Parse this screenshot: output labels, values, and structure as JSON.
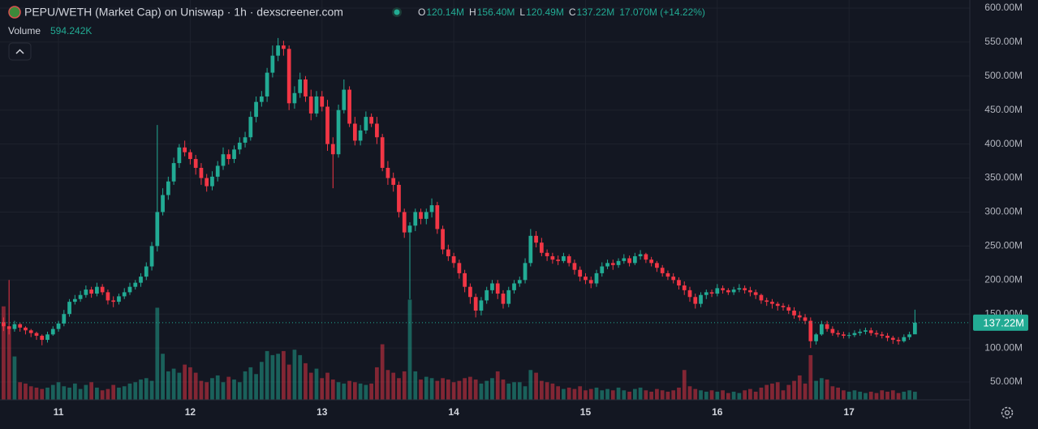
{
  "chart_data": {
    "type": "candlestick",
    "title": "PEPU/WETH (Market Cap) on Uniswap · 1h · dexscreener.com",
    "legend": [
      {
        "key": "O",
        "value": "120.14M"
      },
      {
        "key": "H",
        "value": "156.40M"
      },
      {
        "key": "L",
        "value": "120.49M"
      },
      {
        "key": "C",
        "value": "137.22M"
      }
    ],
    "change": "17.070M (+14.22%)",
    "volume_name": "Volume",
    "volume_readout": "594.242K",
    "up_color": "#22ab94",
    "down_color": "#f23645",
    "grid": true,
    "ylim": [
      23.8,
      611.9
    ],
    "yticks": [
      {
        "value": 50,
        "label": "50.00M"
      },
      {
        "value": 100,
        "label": "100.00M"
      },
      {
        "value": 150,
        "label": "150.00M"
      },
      {
        "value": 200,
        "label": "200.00M"
      },
      {
        "value": 250,
        "label": "250.00M"
      },
      {
        "value": 300,
        "label": "300.00M"
      },
      {
        "value": 350,
        "label": "350.00M"
      },
      {
        "value": 400,
        "label": "400.00M"
      },
      {
        "value": 450,
        "label": "450.00M"
      },
      {
        "value": 500,
        "label": "500.00M"
      },
      {
        "value": 550,
        "label": "550.00M"
      },
      {
        "value": 600,
        "label": "600.00M"
      }
    ],
    "xlim": [
      -0.65,
      176
    ],
    "xticks": [
      {
        "value": 10,
        "label": "11"
      },
      {
        "value": 34,
        "label": "12"
      },
      {
        "value": 58,
        "label": "13"
      },
      {
        "value": 82,
        "label": "14"
      },
      {
        "value": 106,
        "label": "15"
      },
      {
        "value": 130,
        "label": "16"
      },
      {
        "value": 154,
        "label": "17"
      }
    ],
    "last_price": {
      "value": 137.22,
      "label": "137.22M"
    },
    "x": [
      0,
      1,
      2,
      3,
      4,
      5,
      6,
      7,
      8,
      9,
      10,
      11,
      12,
      13,
      14,
      15,
      16,
      17,
      18,
      19,
      20,
      21,
      22,
      23,
      24,
      25,
      26,
      27,
      28,
      29,
      30,
      31,
      32,
      33,
      34,
      35,
      36,
      37,
      38,
      39,
      40,
      41,
      42,
      43,
      44,
      45,
      46,
      47,
      48,
      49,
      50,
      51,
      52,
      53,
      54,
      55,
      56,
      57,
      58,
      59,
      60,
      61,
      62,
      63,
      64,
      65,
      66,
      67,
      68,
      69,
      70,
      71,
      72,
      73,
      74,
      75,
      76,
      77,
      78,
      79,
      80,
      81,
      82,
      83,
      84,
      85,
      86,
      87,
      88,
      89,
      90,
      91,
      92,
      93,
      94,
      95,
      96,
      97,
      98,
      99,
      100,
      101,
      102,
      103,
      104,
      105,
      106,
      107,
      108,
      109,
      110,
      111,
      112,
      113,
      114,
      115,
      116,
      117,
      118,
      119,
      120,
      121,
      122,
      123,
      124,
      125,
      126,
      127,
      128,
      129,
      130,
      131,
      132,
      133,
      134,
      135,
      136,
      137,
      138,
      139,
      140,
      141,
      142,
      143,
      144,
      145,
      146,
      147,
      148,
      149,
      150,
      151,
      152,
      153,
      154,
      155,
      156,
      157,
      158,
      159,
      160,
      161,
      162,
      163,
      164,
      165,
      166
    ],
    "open": [
      138,
      132,
      128,
      135,
      130,
      126,
      122,
      118,
      112,
      120,
      128,
      136,
      150,
      168,
      172,
      178,
      186,
      180,
      190,
      182,
      170,
      168,
      176,
      182,
      190,
      196,
      205,
      220,
      250,
      300,
      325,
      345,
      372,
      395,
      388,
      378,
      365,
      350,
      338,
      352,
      368,
      385,
      378,
      392,
      402,
      410,
      440,
      462,
      470,
      505,
      530,
      545,
      540,
      460,
      475,
      495,
      470,
      445,
      470,
      455,
      400,
      385,
      450,
      480,
      430,
      405,
      420,
      440,
      430,
      410,
      365,
      350,
      340,
      300,
      270,
      280,
      300,
      290,
      300,
      310,
      275,
      245,
      235,
      225,
      210,
      190,
      175,
      155,
      170,
      185,
      195,
      180,
      165,
      185,
      195,
      200,
      225,
      265,
      255,
      240,
      235,
      230,
      228,
      235,
      225,
      215,
      205,
      200,
      195,
      210,
      220,
      225,
      222,
      228,
      232,
      225,
      235,
      238,
      230,
      225,
      218,
      210,
      205,
      200,
      192,
      185,
      175,
      165,
      178,
      182,
      180,
      188,
      185,
      182,
      186,
      188,
      185,
      182,
      178,
      170,
      168,
      165,
      162,
      160,
      155,
      148,
      145,
      140,
      110,
      120,
      135,
      128,
      122,
      120,
      118,
      119,
      122,
      124,
      126,
      122,
      120,
      118,
      115,
      112,
      110,
      116,
      120.14
    ],
    "high": [
      145,
      200,
      140,
      137,
      132,
      128,
      124,
      120,
      124,
      132,
      140,
      156,
      172,
      178,
      184,
      192,
      190,
      196,
      194,
      186,
      176,
      180,
      188,
      196,
      200,
      210,
      226,
      256,
      428,
      335,
      352,
      380,
      400,
      405,
      392,
      384,
      372,
      356,
      360,
      375,
      395,
      392,
      398,
      410,
      418,
      448,
      470,
      478,
      512,
      545,
      556,
      552,
      545,
      485,
      505,
      500,
      480,
      478,
      478,
      465,
      410,
      458,
      495,
      485,
      440,
      428,
      448,
      445,
      440,
      415,
      375,
      358,
      345,
      305,
      285,
      305,
      305,
      305,
      320,
      315,
      280,
      252,
      240,
      230,
      215,
      195,
      180,
      175,
      190,
      200,
      200,
      185,
      190,
      200,
      205,
      232,
      275,
      272,
      262,
      245,
      240,
      236,
      240,
      238,
      230,
      220,
      210,
      205,
      215,
      226,
      230,
      230,
      232,
      238,
      236,
      240,
      244,
      240,
      234,
      228,
      222,
      214,
      210,
      204,
      198,
      190,
      180,
      182,
      186,
      186,
      194,
      192,
      188,
      190,
      194,
      192,
      190,
      186,
      180,
      174,
      172,
      168,
      166,
      164,
      160,
      154,
      150,
      145,
      122,
      140,
      140,
      132,
      126,
      124,
      123,
      126,
      128,
      130,
      130,
      126,
      124,
      122,
      118,
      116,
      120,
      124,
      156.4
    ],
    "low": [
      125,
      120,
      124,
      124,
      120,
      116,
      112,
      104,
      108,
      118,
      124,
      132,
      146,
      164,
      168,
      174,
      174,
      176,
      178,
      164,
      160,
      164,
      172,
      178,
      186,
      190,
      200,
      214,
      242,
      295,
      318,
      340,
      365,
      382,
      370,
      355,
      340,
      330,
      332,
      345,
      362,
      370,
      372,
      385,
      395,
      405,
      432,
      455,
      462,
      498,
      522,
      530,
      450,
      452,
      468,
      462,
      435,
      440,
      448,
      390,
      335,
      380,
      445,
      425,
      398,
      398,
      415,
      425,
      400,
      360,
      340,
      330,
      292,
      262,
      172,
      272,
      282,
      282,
      292,
      268,
      238,
      228,
      218,
      202,
      182,
      165,
      145,
      148,
      165,
      180,
      172,
      158,
      160,
      180,
      190,
      195,
      220,
      248,
      235,
      228,
      224,
      222,
      225,
      220,
      208,
      198,
      194,
      188,
      190,
      205,
      216,
      215,
      218,
      224,
      220,
      222,
      230,
      225,
      220,
      212,
      205,
      200,
      195,
      186,
      178,
      168,
      158,
      160,
      172,
      175,
      176,
      180,
      178,
      178,
      182,
      180,
      176,
      172,
      165,
      162,
      158,
      155,
      155,
      150,
      143,
      140,
      135,
      100,
      105,
      118,
      124,
      118,
      116,
      114,
      114,
      116,
      118,
      120,
      118,
      116,
      114,
      110,
      106,
      105,
      108,
      112,
      120.49
    ],
    "close": [
      132,
      128,
      135,
      130,
      126,
      122,
      118,
      112,
      120,
      128,
      136,
      150,
      168,
      172,
      178,
      186,
      180,
      190,
      182,
      170,
      168,
      176,
      182,
      190,
      196,
      205,
      220,
      250,
      300,
      325,
      345,
      372,
      395,
      388,
      378,
      365,
      350,
      338,
      352,
      368,
      385,
      378,
      392,
      402,
      410,
      440,
      462,
      470,
      505,
      530,
      545,
      540,
      460,
      475,
      495,
      470,
      445,
      470,
      455,
      400,
      385,
      450,
      480,
      430,
      405,
      420,
      440,
      430,
      410,
      365,
      350,
      340,
      300,
      270,
      280,
      300,
      290,
      300,
      310,
      275,
      245,
      235,
      225,
      210,
      190,
      175,
      155,
      170,
      185,
      195,
      180,
      165,
      185,
      195,
      200,
      225,
      265,
      255,
      240,
      235,
      230,
      228,
      235,
      225,
      215,
      205,
      200,
      195,
      210,
      220,
      225,
      222,
      228,
      232,
      225,
      235,
      238,
      230,
      225,
      218,
      210,
      205,
      200,
      192,
      185,
      175,
      165,
      178,
      182,
      180,
      188,
      185,
      182,
      186,
      188,
      185,
      182,
      178,
      170,
      168,
      165,
      162,
      160,
      155,
      148,
      145,
      140,
      110,
      120,
      135,
      128,
      122,
      120,
      118,
      119,
      122,
      124,
      126,
      122,
      120,
      118,
      115,
      112,
      110,
      116,
      120,
      137.22
    ],
    "volume": [
      6900,
      5300,
      3200,
      1300,
      1200,
      1000,
      900,
      800,
      900,
      1100,
      1300,
      1000,
      900,
      1200,
      800,
      1100,
      1300,
      900,
      700,
      800,
      1100,
      900,
      1000,
      1200,
      1300,
      1500,
      1600,
      1400,
      6800,
      3400,
      2100,
      2300,
      2000,
      2600,
      2400,
      2000,
      1400,
      1300,
      1600,
      1800,
      1300,
      1700,
      1500,
      1300,
      2100,
      2400,
      1900,
      2800,
      3600,
      3300,
      3400,
      3600,
      2600,
      3700,
      3300,
      2700,
      2000,
      2300,
      1600,
      2000,
      1500,
      1300,
      1200,
      1400,
      1300,
      1200,
      1100,
      1200,
      2400,
      4100,
      2200,
      2000,
      1600,
      2100,
      7400,
      2100,
      1500,
      1700,
      1600,
      1400,
      1600,
      1500,
      1300,
      1400,
      1600,
      1700,
      1500,
      1200,
      1400,
      1600,
      2100,
      1500,
      1200,
      1300,
      1300,
      1000,
      2200,
      2000,
      1400,
      1300,
      1200,
      1000,
      800,
      900,
      800,
      1000,
      700,
      800,
      900,
      700,
      800,
      700,
      900,
      700,
      600,
      800,
      900,
      700,
      600,
      800,
      700,
      600,
      700,
      900,
      2200,
      1000,
      800,
      700,
      600,
      700,
      600,
      700,
      500,
      600,
      500,
      700,
      800,
      600,
      900,
      1100,
      1200,
      1300,
      700,
      1100,
      1400,
      1800,
      1200,
      3300,
      1400,
      1600,
      1500,
      1000,
      900,
      700,
      600,
      700,
      600,
      500,
      600,
      500,
      700,
      600,
      700,
      500,
      600,
      700,
      594.242
    ]
  }
}
